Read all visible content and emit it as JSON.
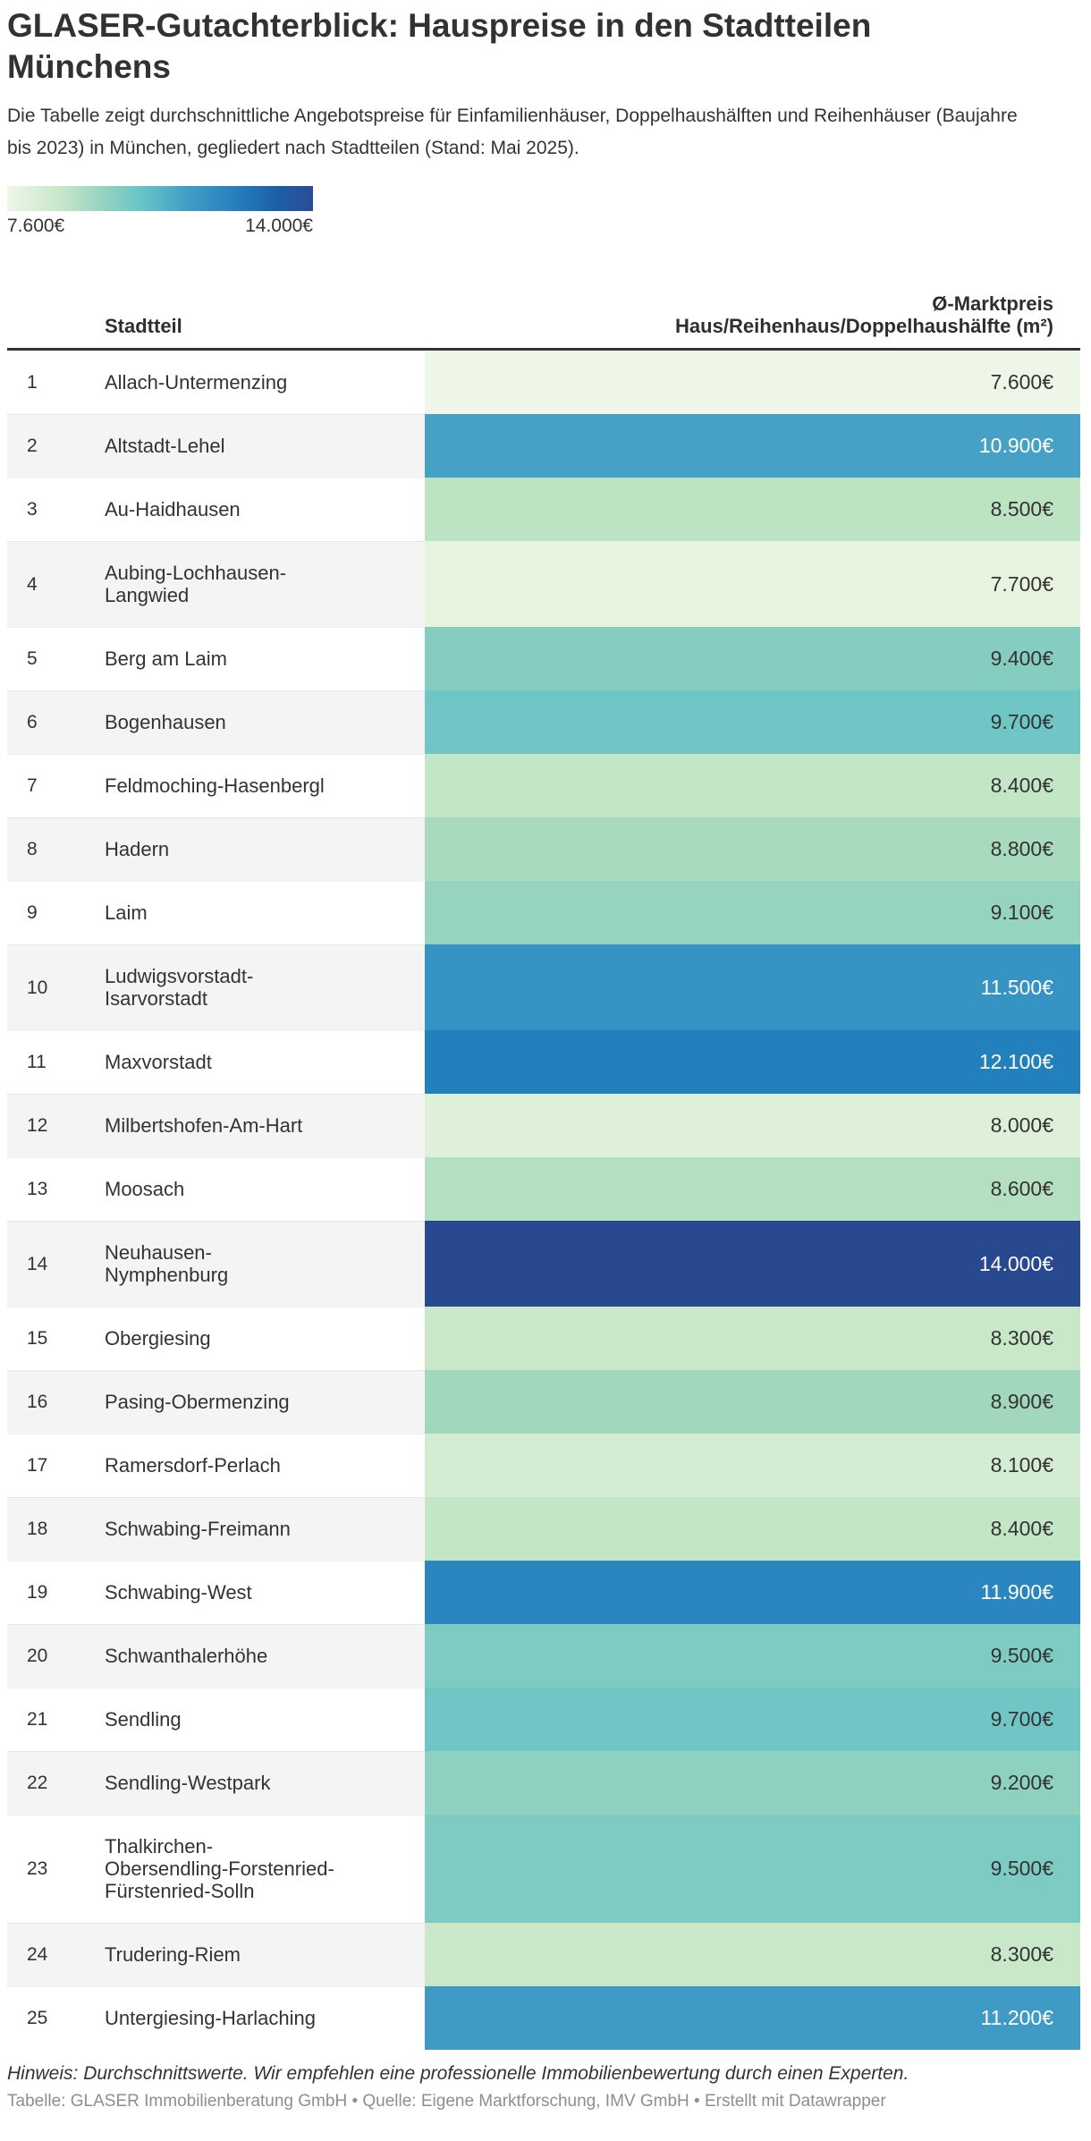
{
  "header": {
    "title": "GLASER-Gutachterblick: Hauspreise in den Stadtteilen Münchens",
    "description": "Die Tabelle zeigt durchschnittliche Angebotspreise für Einfamilienhäuser, Doppelhaushälften und Reihenhäuser (Baujahre bis 2023) in München, gegliedert nach Stadtteilen (Stand: Mai 2025)."
  },
  "legend": {
    "min_label": "7.600€",
    "max_label": "14.000€",
    "gradient_stops": [
      "#eef7e8 0%",
      "#c5e6c8 18%",
      "#8fd1c0 33%",
      "#68c4c7 44%",
      "#3f9cc6 60%",
      "#2377b9 78%",
      "#1d5fa6 88%",
      "#2c4b92 100%"
    ]
  },
  "table": {
    "col_stadtteil": "Stadtteil",
    "col_price": "Ø-Marktpreis\nHaus/Reihenhaus/Doppelhaushälfte (m²)",
    "dark_text_color": "#333333",
    "light_text_color": "#ffffff",
    "rows": [
      {
        "rank": "1",
        "name": "Allach-Untermenzing",
        "price": "7.600€",
        "color": "#eef7e7",
        "text_color": "#333333"
      },
      {
        "rank": "2",
        "name": "Altstadt-Lehel",
        "price": "10.900€",
        "color": "#47a0c5",
        "text_color": "#ffffff"
      },
      {
        "rank": "3",
        "name": "Au-Haidhausen",
        "price": "8.500€",
        "color": "#bce4c3",
        "text_color": "#333333"
      },
      {
        "rank": "4",
        "name": "Aubing-Lochhausen-\nLangwied",
        "price": "7.700€",
        "color": "#e9f4e0",
        "text_color": "#333333"
      },
      {
        "rank": "5",
        "name": "Berg am Laim",
        "price": "9.400€",
        "color": "#84cdc0",
        "text_color": "#333333"
      },
      {
        "rank": "6",
        "name": "Bogenhausen",
        "price": "9.700€",
        "color": "#70c6c5",
        "text_color": "#333333"
      },
      {
        "rank": "7",
        "name": "Feldmoching-Hasenbergl",
        "price": "8.400€",
        "color": "#c3e6c7",
        "text_color": "#333333"
      },
      {
        "rank": "8",
        "name": "Hadern",
        "price": "8.800€",
        "color": "#a8dabd",
        "text_color": "#333333"
      },
      {
        "rank": "9",
        "name": "Laim",
        "price": "9.100€",
        "color": "#97d4bf",
        "text_color": "#333333"
      },
      {
        "rank": "10",
        "name": "Ludwigsvorstadt-\nIsarvorstadt",
        "price": "11.500€",
        "color": "#3594c4",
        "text_color": "#ffffff"
      },
      {
        "rank": "11",
        "name": "Maxvorstadt",
        "price": "12.100€",
        "color": "#2280bd",
        "text_color": "#ffffff"
      },
      {
        "rank": "12",
        "name": "Milbertshofen-Am-Hart",
        "price": "8.000€",
        "color": "#def0d9",
        "text_color": "#333333"
      },
      {
        "rank": "13",
        "name": "Moosach",
        "price": "8.600€",
        "color": "#b4e0c0",
        "text_color": "#333333"
      },
      {
        "rank": "14",
        "name": "Neuhausen-\nNymphenburg",
        "price": "14.000€",
        "color": "#284890",
        "text_color": "#ffffff"
      },
      {
        "rank": "15",
        "name": "Obergiesing",
        "price": "8.300€",
        "color": "#c9e8ca",
        "text_color": "#333333"
      },
      {
        "rank": "16",
        "name": "Pasing-Obermenzing",
        "price": "8.900€",
        "color": "#a0d7bd",
        "text_color": "#333333"
      },
      {
        "rank": "17",
        "name": "Ramersdorf-Perlach",
        "price": "8.100€",
        "color": "#d4ecd1",
        "text_color": "#333333"
      },
      {
        "rank": "18",
        "name": "Schwabing-Freimann",
        "price": "8.400€",
        "color": "#c3e6c7",
        "text_color": "#333333"
      },
      {
        "rank": "19",
        "name": "Schwabing-West",
        "price": "11.900€",
        "color": "#2b86bf",
        "text_color": "#ffffff"
      },
      {
        "rank": "20",
        "name": "Schwanthalerhöhe",
        "price": "9.500€",
        "color": "#7dcbc2",
        "text_color": "#333333"
      },
      {
        "rank": "21",
        "name": "Sendling",
        "price": "9.700€",
        "color": "#70c6c5",
        "text_color": "#333333"
      },
      {
        "rank": "22",
        "name": "Sendling-Westpark",
        "price": "9.200€",
        "color": "#8fd1c0",
        "text_color": "#333333"
      },
      {
        "rank": "23",
        "name": "Thalkirchen-\nObersendling-Forstenried-\nFürstenried-Solln",
        "price": "9.500€",
        "color": "#7dcbc2",
        "text_color": "#333333"
      },
      {
        "rank": "24",
        "name": "Trudering-Riem",
        "price": "8.300€",
        "color": "#c9e8ca",
        "text_color": "#333333"
      },
      {
        "rank": "25",
        "name": "Untergiesing-Harlaching",
        "price": "11.200€",
        "color": "#3f9bc5",
        "text_color": "#ffffff"
      }
    ]
  },
  "footer": {
    "note": "Hinweis: Durchschnittswerte. Wir empfehlen eine professionelle Immobilienbewertung durch einen Experten.",
    "attribution": "Tabelle: GLASER Immobilienberatung GmbH • Quelle: Eigene Marktforschung, IMV GmbH • Erstellt mit Datawrapper"
  },
  "chart_data": {
    "type": "table",
    "title": "GLASER-Gutachterblick: Hauspreise in den Stadtteilen Münchens",
    "subtitle": "Die Tabelle zeigt durchschnittliche Angebotspreise für Einfamilienhäuser, Doppelhaushälften und Reihenhäuser (Baujahre bis 2023) in München, gegliedert nach Stadtteilen (Stand: Mai 2025).",
    "columns": [
      "Stadtteil",
      "Ø-Marktpreis Haus/Reihenhaus/Doppelhaushälfte (m²)"
    ],
    "unit": "€ pro m²",
    "color_scale": {
      "min": 7600,
      "max": 14000,
      "min_label": "7.600€",
      "max_label": "14.000€",
      "low_color": "#eef7e7",
      "high_color": "#284890"
    },
    "rows": [
      [
        "Allach-Untermenzing",
        7600
      ],
      [
        "Altstadt-Lehel",
        10900
      ],
      [
        "Au-Haidhausen",
        8500
      ],
      [
        "Aubing-Lochhausen-Langwied",
        7700
      ],
      [
        "Berg am Laim",
        9400
      ],
      [
        "Bogenhausen",
        9700
      ],
      [
        "Feldmoching-Hasenbergl",
        8400
      ],
      [
        "Hadern",
        8800
      ],
      [
        "Laim",
        9100
      ],
      [
        "Ludwigsvorstadt-Isarvorstadt",
        11500
      ],
      [
        "Maxvorstadt",
        12100
      ],
      [
        "Milbertshofen-Am-Hart",
        8000
      ],
      [
        "Moosach",
        8600
      ],
      [
        "Neuhausen-Nymphenburg",
        14000
      ],
      [
        "Obergiesing",
        8300
      ],
      [
        "Pasing-Obermenzing",
        8900
      ],
      [
        "Ramersdorf-Perlach",
        8100
      ],
      [
        "Schwabing-Freimann",
        8400
      ],
      [
        "Schwabing-West",
        11900
      ],
      [
        "Schwanthalerhöhe",
        9500
      ],
      [
        "Sendling",
        9700
      ],
      [
        "Sendling-Westpark",
        9200
      ],
      [
        "Thalkirchen-Obersendling-Forstenried-Fürstenried-Solln",
        9500
      ],
      [
        "Trudering-Riem",
        8300
      ],
      [
        "Untergiesing-Harlaching",
        11200
      ]
    ]
  }
}
